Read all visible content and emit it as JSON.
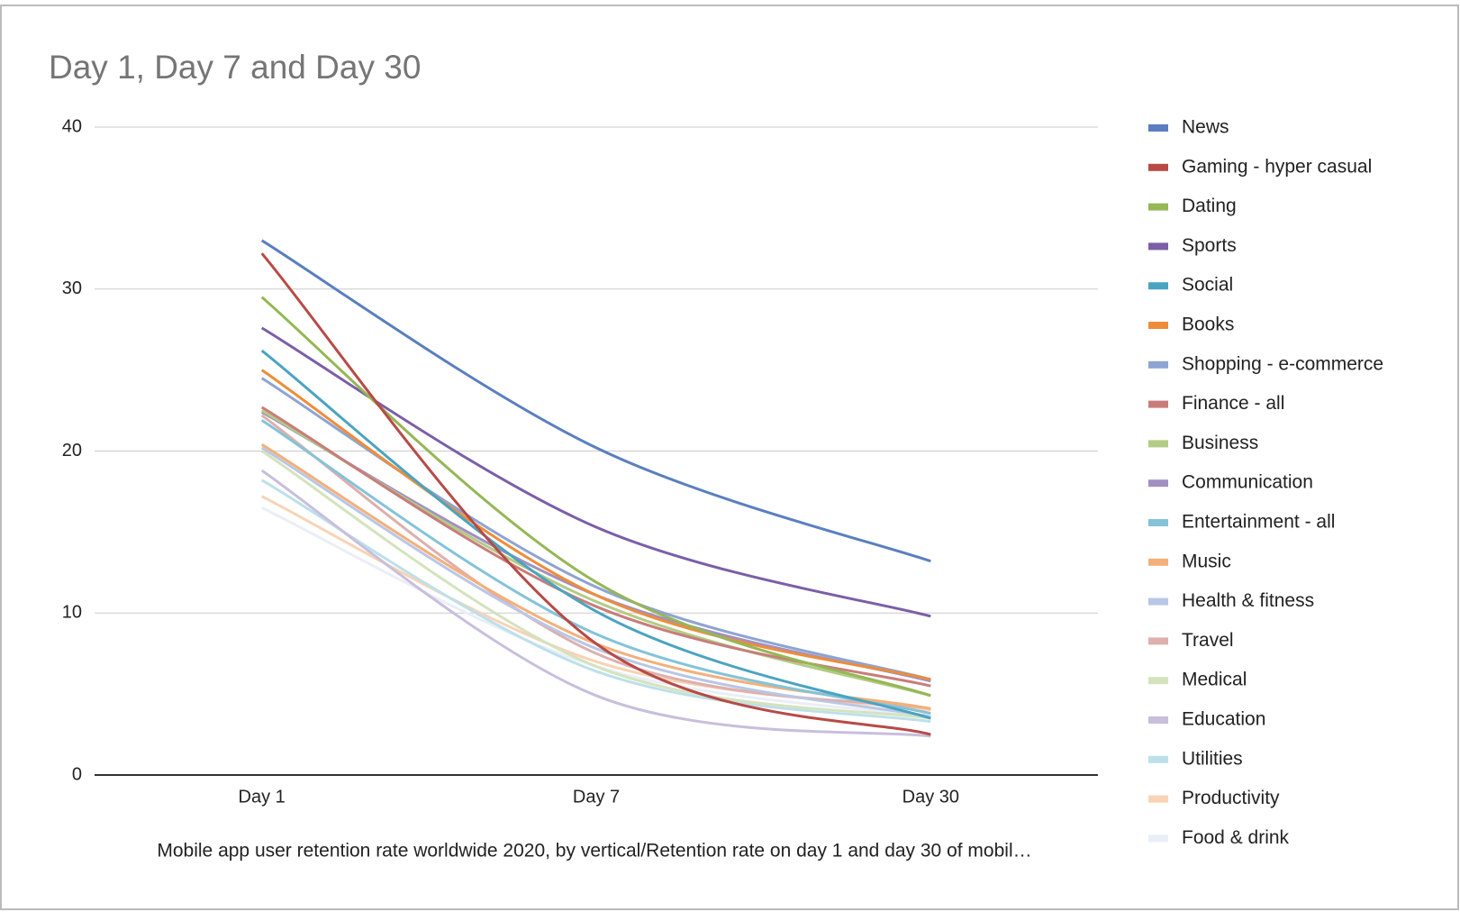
{
  "chart_data": {
    "type": "line",
    "title": "Day 1, Day 7 and Day 30",
    "x_label": "Mobile app user retention rate worldwide 2020, by vertical/Retention rate on day 1 and day 30 of mobil…",
    "categories": [
      "Day 1",
      "Day 7",
      "Day 30"
    ],
    "ylim": [
      0,
      40
    ],
    "yticks": [
      0,
      10,
      20,
      30,
      40
    ],
    "grid": true,
    "legend": "right",
    "series": [
      {
        "name": "News",
        "color": "#5a7fc0",
        "values": [
          33.0,
          20.2,
          13.2
        ]
      },
      {
        "name": "Gaming - hyper casual",
        "color": "#b84a46",
        "values": [
          32.2,
          8.1,
          2.5
        ]
      },
      {
        "name": "Dating",
        "color": "#95b755",
        "values": [
          29.5,
          11.9,
          4.9
        ]
      },
      {
        "name": "Sports",
        "color": "#7b5ea7",
        "values": [
          27.6,
          15.3,
          9.8
        ]
      },
      {
        "name": "Social",
        "color": "#4aa4c0",
        "values": [
          26.2,
          10.1,
          3.5
        ]
      },
      {
        "name": "Books",
        "color": "#ed8d3a",
        "values": [
          25.0,
          11.1,
          5.9
        ]
      },
      {
        "name": "Shopping - e-commerce",
        "color": "#8ea4d2",
        "values": [
          24.5,
          11.6,
          5.9
        ]
      },
      {
        "name": "Finance - all",
        "color": "#c87d7a",
        "values": [
          22.7,
          10.4,
          5.5
        ]
      },
      {
        "name": "Business",
        "color": "#b2cc85",
        "values": [
          22.5,
          10.7,
          4.9
        ]
      },
      {
        "name": "Communication",
        "color": "#a28fc2",
        "values": [
          22.4,
          11.1,
          5.8
        ]
      },
      {
        "name": "Entertainment - all",
        "color": "#84c3d8",
        "values": [
          21.9,
          8.7,
          3.8
        ]
      },
      {
        "name": "Music",
        "color": "#f3b07a",
        "values": [
          20.4,
          8.1,
          4.1
        ]
      },
      {
        "name": "Health & fitness",
        "color": "#b9c7e6",
        "values": [
          20.2,
          7.8,
          3.6
        ]
      },
      {
        "name": "Travel",
        "color": "#deafad",
        "values": [
          22.2,
          7.5,
          4.1
        ]
      },
      {
        "name": "Medical",
        "color": "#d4e3bd",
        "values": [
          20.0,
          6.7,
          3.5
        ]
      },
      {
        "name": "Education",
        "color": "#c8bedd",
        "values": [
          18.8,
          4.9,
          2.4
        ]
      },
      {
        "name": "Utilities",
        "color": "#bde0ea",
        "values": [
          18.2,
          6.4,
          3.3
        ]
      },
      {
        "name": "Productivity",
        "color": "#f8d3b5",
        "values": [
          17.2,
          7.0,
          4.0
        ]
      },
      {
        "name": "Food & drink",
        "color": "#e9eef7",
        "values": [
          16.5,
          6.7,
          3.6
        ]
      }
    ]
  }
}
